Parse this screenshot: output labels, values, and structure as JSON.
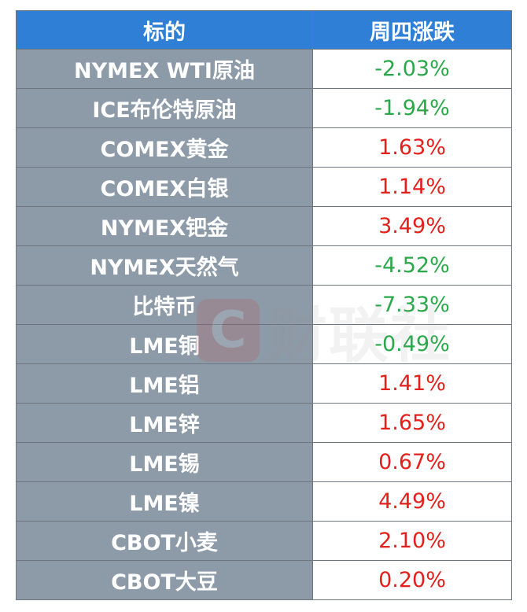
{
  "table": {
    "header": [
      "标的",
      "周四涨跌"
    ],
    "rows": [
      [
        "NYMEX WTI原油",
        "-2.03%"
      ],
      [
        "ICE布伦特原油",
        "-1.94%"
      ],
      [
        "COMEX黄金",
        "1.63%"
      ],
      [
        "COMEX白银",
        "1.14%"
      ],
      [
        "NYMEX钯金",
        "3.49%"
      ],
      [
        "NYMEX天然气",
        "-4.52%"
      ],
      [
        "比特币",
        "-7.33%"
      ],
      [
        "LME铜",
        "-0.49%"
      ],
      [
        "LME铝",
        "1.41%"
      ],
      [
        "LME锌",
        "1.65%"
      ],
      [
        "LME锡",
        "0.67%"
      ],
      [
        "LME镍",
        "4.49%"
      ],
      [
        "CBOT小麦",
        "2.10%"
      ],
      [
        "CBOT大豆",
        "0.20%"
      ]
    ],
    "up_color": "#e3211c",
    "down_color": "#2aa84a"
  },
  "watermark": "财联社"
}
